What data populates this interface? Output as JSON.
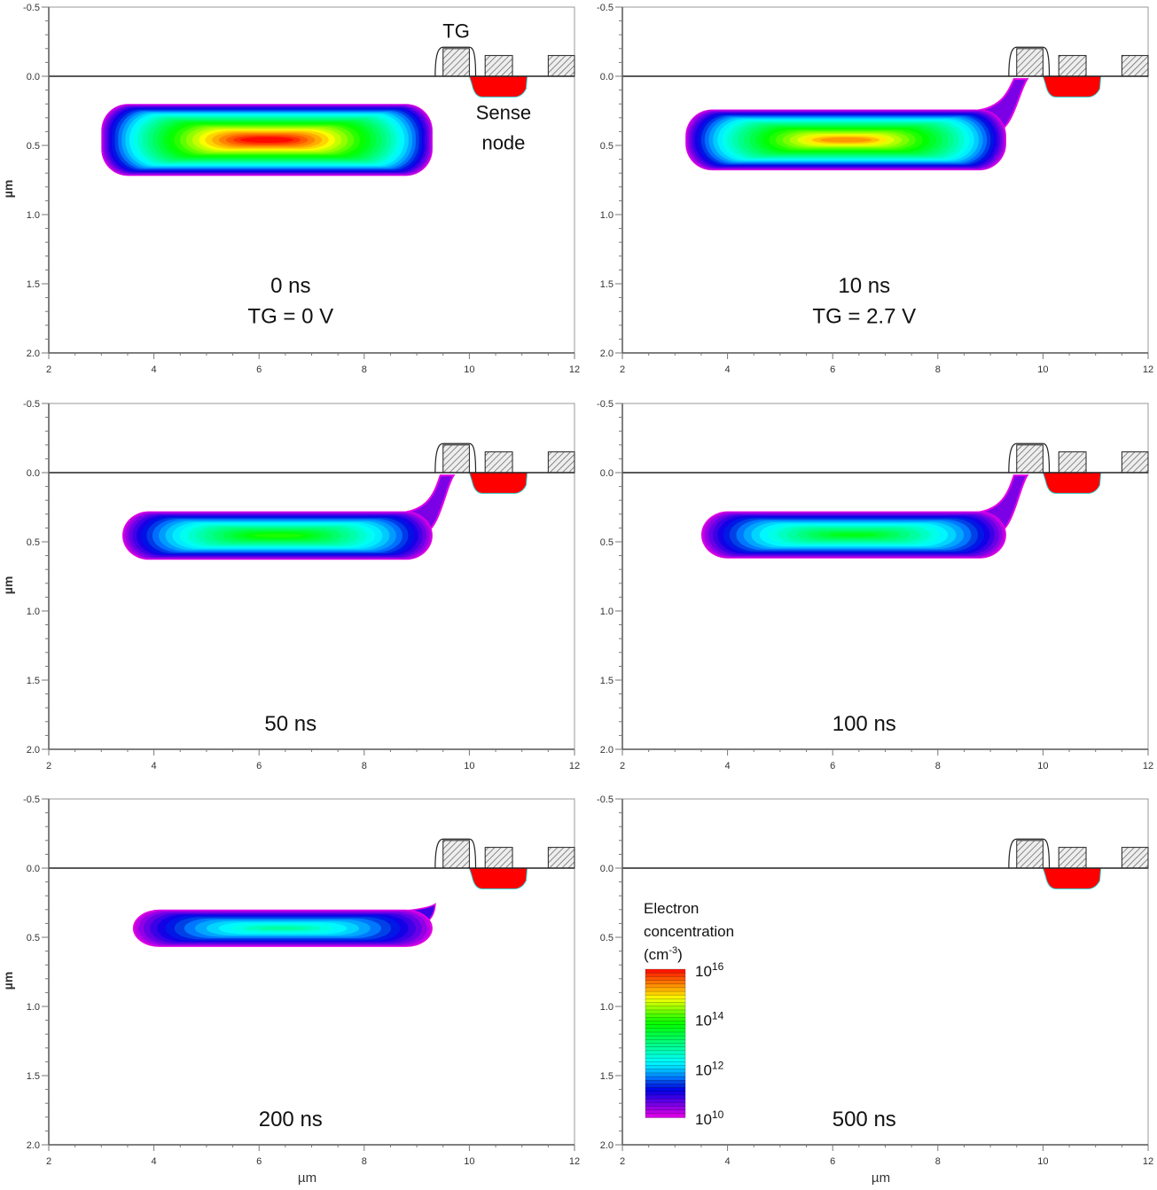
{
  "chart_data": {
    "type": "heatmap",
    "xlabel": "µm",
    "ylabel": "µm",
    "xlim": [
      2,
      12
    ],
    "ylim": [
      2.0,
      -0.5
    ],
    "x_ticks": [
      "2",
      "4",
      "6",
      "8",
      "10",
      "12"
    ],
    "y_ticks": [
      "-0.5",
      "0.0",
      "0.5",
      "1.0",
      "1.5",
      "2.0"
    ],
    "colorbar": {
      "title_line1": "Electron",
      "title_line2": "concentration",
      "unit_base": "(cm",
      "unit_exp": "-3",
      "unit_close": ")",
      "scale": "log",
      "range": [
        10,
        16
      ],
      "ticks": [
        {
          "base": "10",
          "exp": "16",
          "value": 16
        },
        {
          "base": "10",
          "exp": "14",
          "value": 14
        },
        {
          "base": "10",
          "exp": "12",
          "value": 12
        },
        {
          "base": "10",
          "exp": "10",
          "value": 10
        }
      ],
      "colors": {
        "10": "#ff00ff",
        "11": "#2000ff",
        "12": "#00c8ff",
        "13": "#00ff90",
        "14": "#30e000",
        "15": "#ffd000",
        "16": "#ff1000"
      }
    },
    "annotations": {
      "tg": "TG",
      "sense_line1": "Sense",
      "sense_line2": "node"
    },
    "sense_node_color": "#ff0000",
    "panels": [
      {
        "time": "0 ns",
        "condition": "TG = 0 V",
        "packet": {
          "x": [
            3.0,
            9.3
          ],
          "depth": [
            0.2,
            0.72
          ],
          "peak_log10": 16,
          "tail": false
        }
      },
      {
        "time": "10 ns",
        "condition": "TG = 2.7 V",
        "packet": {
          "x": [
            3.2,
            9.3
          ],
          "depth": [
            0.24,
            0.68
          ],
          "peak_log10": 15.3,
          "tail": true
        }
      },
      {
        "time": "50 ns",
        "condition": "",
        "packet": {
          "x": [
            3.4,
            9.3
          ],
          "depth": [
            0.28,
            0.63
          ],
          "peak_log10": 13.9,
          "tail": true
        }
      },
      {
        "time": "100 ns",
        "condition": "",
        "packet": {
          "x": [
            3.5,
            9.3
          ],
          "depth": [
            0.28,
            0.62
          ],
          "peak_log10": 13.6,
          "tail": true
        }
      },
      {
        "time": "200 ns",
        "condition": "",
        "packet": {
          "x": [
            3.6,
            9.3
          ],
          "depth": [
            0.3,
            0.57
          ],
          "peak_log10": 12.8,
          "tail": false
        }
      },
      {
        "time": "500 ns",
        "condition": "",
        "packet": null
      }
    ]
  }
}
